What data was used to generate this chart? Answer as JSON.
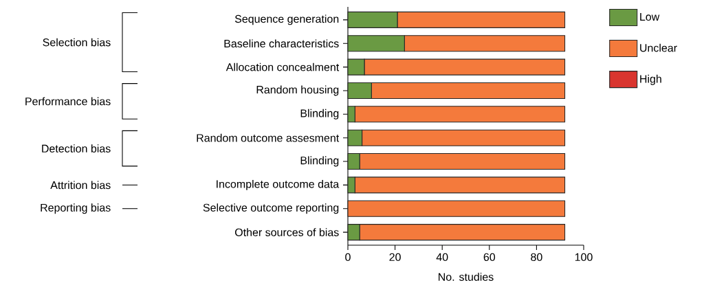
{
  "chart_data": {
    "type": "bar",
    "orientation": "horizontal",
    "stacked": true,
    "categories": [
      "Sequence generation",
      "Baseline characteristics",
      "Allocation concealment",
      "Random housing",
      "Blinding",
      "Random outcome assesment",
      "Blinding",
      "Incomplete outcome data",
      "Selective outcome reporting",
      "Other sources of bias"
    ],
    "series": [
      {
        "name": "Low",
        "color": "#6a9a43",
        "values": [
          21,
          24,
          7,
          10,
          3,
          6,
          5,
          3,
          0,
          5
        ]
      },
      {
        "name": "Unclear",
        "color": "#f47a3c",
        "values": [
          71,
          68,
          85,
          82,
          89,
          86,
          87,
          89,
          92,
          87
        ]
      },
      {
        "name": "High",
        "color": "#d9352f",
        "values": [
          0,
          0,
          0,
          0,
          0,
          0,
          0,
          0,
          0,
          0
        ]
      }
    ],
    "xlabel": "No. studies",
    "xlim": [
      0,
      100
    ],
    "xticks": [
      0,
      20,
      40,
      60,
      80,
      100
    ],
    "annotations": [
      "Selection bias",
      "Performance bias",
      "Detection bias",
      "Attrition bias",
      "Reporting bias"
    ],
    "legend": "right"
  }
}
